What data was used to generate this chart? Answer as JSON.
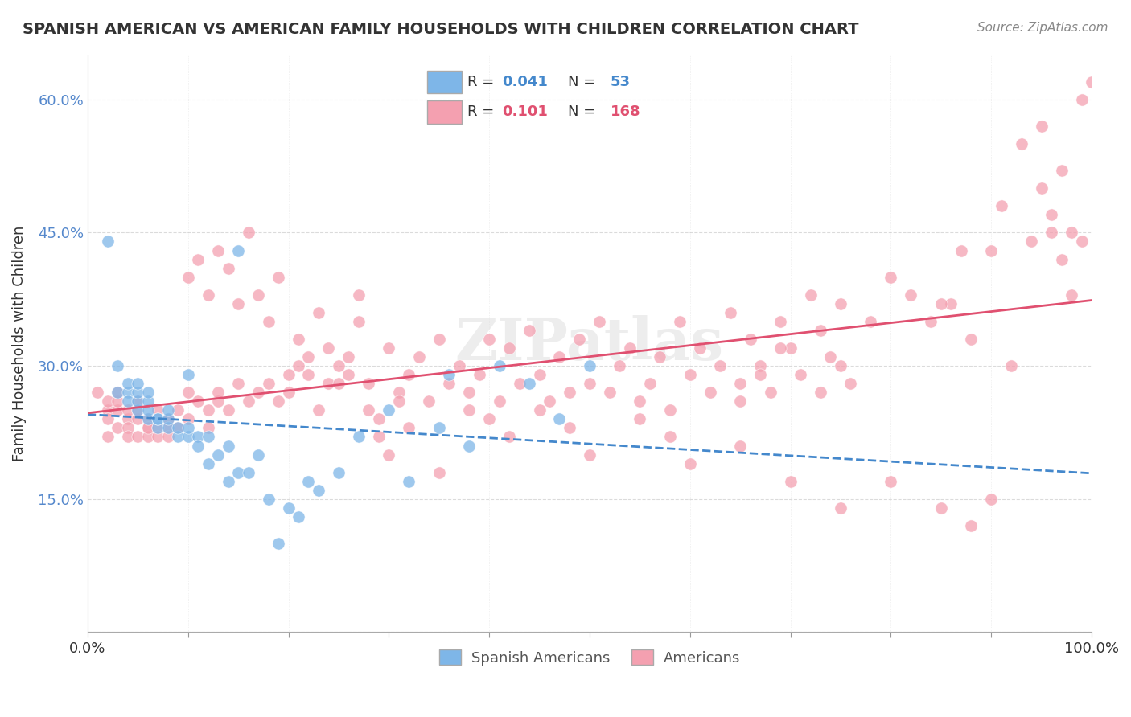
{
  "title": "SPANISH AMERICAN VS AMERICAN FAMILY HOUSEHOLDS WITH CHILDREN CORRELATION CHART",
  "source": "Source: ZipAtlas.com",
  "ylabel": "Family Households with Children",
  "xlabel": "",
  "xlim": [
    0.0,
    1.0
  ],
  "ylim": [
    0.0,
    0.65
  ],
  "yticks": [
    0.0,
    0.15,
    0.3,
    0.45,
    0.6
  ],
  "ytick_labels": [
    "",
    "15.0%",
    "30.0%",
    "45.0%",
    "60.0%"
  ],
  "xtick_labels": [
    "0.0%",
    "100.0%"
  ],
  "legend_R_blue": "0.041",
  "legend_N_blue": "53",
  "legend_R_pink": "0.101",
  "legend_N_pink": "168",
  "blue_color": "#7EB6E8",
  "pink_color": "#F4A0B0",
  "trend_blue_color": "#4488CC",
  "trend_pink_color": "#E05070",
  "watermark": "ZIPatlas",
  "background_color": "#FFFFFF",
  "grid_color": "#CCCCCC",
  "blue_scatter_x": [
    0.02,
    0.03,
    0.03,
    0.04,
    0.04,
    0.04,
    0.05,
    0.05,
    0.05,
    0.05,
    0.06,
    0.06,
    0.06,
    0.06,
    0.07,
    0.07,
    0.07,
    0.08,
    0.08,
    0.08,
    0.09,
    0.09,
    0.1,
    0.1,
    0.1,
    0.11,
    0.11,
    0.12,
    0.12,
    0.13,
    0.14,
    0.14,
    0.15,
    0.15,
    0.16,
    0.17,
    0.18,
    0.19,
    0.2,
    0.21,
    0.22,
    0.23,
    0.25,
    0.27,
    0.3,
    0.32,
    0.35,
    0.36,
    0.38,
    0.41,
    0.44,
    0.47,
    0.5
  ],
  "blue_scatter_y": [
    0.44,
    0.27,
    0.3,
    0.27,
    0.26,
    0.28,
    0.25,
    0.26,
    0.27,
    0.28,
    0.24,
    0.25,
    0.26,
    0.27,
    0.23,
    0.24,
    0.24,
    0.23,
    0.24,
    0.25,
    0.22,
    0.23,
    0.22,
    0.23,
    0.29,
    0.22,
    0.21,
    0.22,
    0.19,
    0.2,
    0.21,
    0.17,
    0.18,
    0.43,
    0.18,
    0.2,
    0.15,
    0.1,
    0.14,
    0.13,
    0.17,
    0.16,
    0.18,
    0.22,
    0.25,
    0.17,
    0.23,
    0.29,
    0.21,
    0.3,
    0.28,
    0.24,
    0.3
  ],
  "pink_scatter_x": [
    0.01,
    0.02,
    0.02,
    0.02,
    0.02,
    0.03,
    0.03,
    0.03,
    0.03,
    0.04,
    0.04,
    0.04,
    0.04,
    0.05,
    0.05,
    0.05,
    0.05,
    0.06,
    0.06,
    0.06,
    0.06,
    0.07,
    0.07,
    0.07,
    0.08,
    0.08,
    0.08,
    0.09,
    0.09,
    0.1,
    0.1,
    0.11,
    0.12,
    0.12,
    0.13,
    0.13,
    0.14,
    0.15,
    0.16,
    0.17,
    0.18,
    0.19,
    0.2,
    0.21,
    0.22,
    0.23,
    0.24,
    0.25,
    0.26,
    0.27,
    0.28,
    0.29,
    0.3,
    0.31,
    0.32,
    0.33,
    0.34,
    0.35,
    0.36,
    0.37,
    0.38,
    0.39,
    0.4,
    0.41,
    0.42,
    0.43,
    0.44,
    0.45,
    0.46,
    0.47,
    0.48,
    0.49,
    0.5,
    0.51,
    0.52,
    0.53,
    0.54,
    0.55,
    0.56,
    0.57,
    0.58,
    0.59,
    0.6,
    0.61,
    0.62,
    0.63,
    0.64,
    0.65,
    0.66,
    0.67,
    0.68,
    0.69,
    0.7,
    0.71,
    0.72,
    0.73,
    0.74,
    0.75,
    0.76,
    0.8,
    0.82,
    0.84,
    0.86,
    0.88,
    0.9,
    0.92,
    0.94,
    0.95,
    0.96,
    0.97,
    0.98,
    0.99,
    0.1,
    0.11,
    0.12,
    0.13,
    0.14,
    0.15,
    0.16,
    0.17,
    0.18,
    0.19,
    0.2,
    0.21,
    0.22,
    0.23,
    0.24,
    0.25,
    0.26,
    0.27,
    0.28,
    0.29,
    0.3,
    0.31,
    0.32,
    0.35,
    0.38,
    0.4,
    0.42,
    0.45,
    0.48,
    0.5,
    0.55,
    0.58,
    0.6,
    0.65,
    0.7,
    0.75,
    0.8,
    0.85,
    0.88,
    0.9,
    0.93,
    0.95,
    0.96,
    0.97,
    0.98,
    0.99,
    1.0,
    0.91,
    0.85,
    0.87,
    0.78,
    0.75,
    0.73,
    0.69,
    0.67,
    0.65
  ],
  "pink_scatter_y": [
    0.27,
    0.25,
    0.24,
    0.26,
    0.22,
    0.25,
    0.26,
    0.23,
    0.27,
    0.24,
    0.25,
    0.23,
    0.22,
    0.24,
    0.25,
    0.26,
    0.22,
    0.23,
    0.24,
    0.22,
    0.23,
    0.25,
    0.23,
    0.22,
    0.24,
    0.23,
    0.22,
    0.25,
    0.23,
    0.27,
    0.24,
    0.26,
    0.25,
    0.23,
    0.26,
    0.27,
    0.25,
    0.28,
    0.26,
    0.27,
    0.28,
    0.26,
    0.29,
    0.3,
    0.31,
    0.25,
    0.28,
    0.3,
    0.29,
    0.35,
    0.28,
    0.24,
    0.32,
    0.27,
    0.29,
    0.31,
    0.26,
    0.33,
    0.28,
    0.3,
    0.25,
    0.29,
    0.33,
    0.26,
    0.32,
    0.28,
    0.34,
    0.29,
    0.26,
    0.31,
    0.27,
    0.33,
    0.28,
    0.35,
    0.27,
    0.3,
    0.32,
    0.26,
    0.28,
    0.31,
    0.25,
    0.35,
    0.29,
    0.32,
    0.27,
    0.3,
    0.36,
    0.28,
    0.33,
    0.3,
    0.27,
    0.35,
    0.32,
    0.29,
    0.38,
    0.34,
    0.31,
    0.37,
    0.28,
    0.4,
    0.38,
    0.35,
    0.37,
    0.33,
    0.43,
    0.3,
    0.44,
    0.5,
    0.45,
    0.42,
    0.38,
    0.6,
    0.4,
    0.42,
    0.38,
    0.43,
    0.41,
    0.37,
    0.45,
    0.38,
    0.35,
    0.4,
    0.27,
    0.33,
    0.29,
    0.36,
    0.32,
    0.28,
    0.31,
    0.38,
    0.25,
    0.22,
    0.2,
    0.26,
    0.23,
    0.18,
    0.27,
    0.24,
    0.22,
    0.25,
    0.23,
    0.2,
    0.24,
    0.22,
    0.19,
    0.21,
    0.17,
    0.14,
    0.17,
    0.14,
    0.12,
    0.15,
    0.55,
    0.57,
    0.47,
    0.52,
    0.45,
    0.44,
    0.62,
    0.48,
    0.37,
    0.43,
    0.35,
    0.3,
    0.27,
    0.32,
    0.29,
    0.26
  ]
}
